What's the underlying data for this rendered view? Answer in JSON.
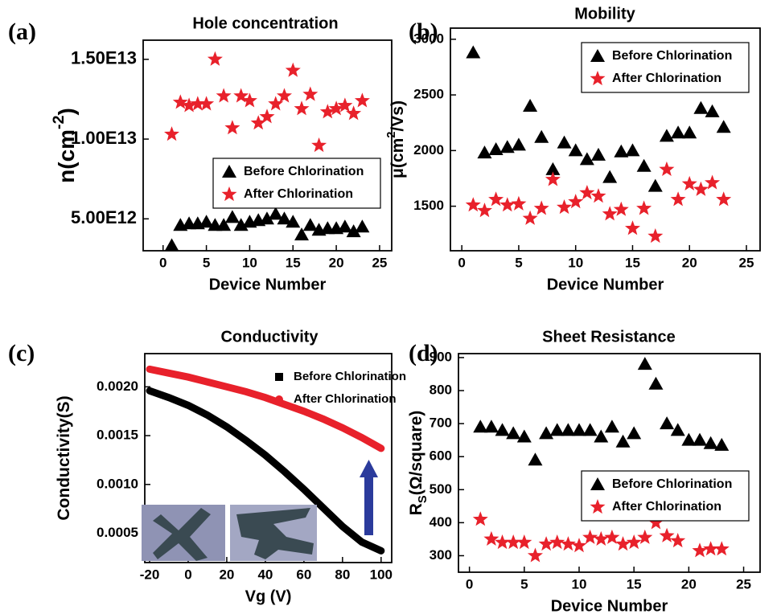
{
  "chart_data": [
    {
      "type": "scatter",
      "label": "(a)",
      "title": "Hole concentration",
      "x_label": "Device Number",
      "y_label": [
        "n(cm",
        "-2",
        ")"
      ],
      "y_label_style": "superscript",
      "x": [
        1,
        2,
        3,
        4,
        5,
        6,
        7,
        8,
        9,
        10,
        11,
        12,
        13,
        14,
        15,
        16,
        17,
        18,
        19,
        20,
        21,
        22,
        23
      ],
      "series": [
        {
          "name": "Before Chlorination",
          "color": "#000000",
          "marker": "triangle",
          "values": [
            3330000000000.0,
            4600000000000.0,
            4700000000000.0,
            4700000000000.0,
            4800000000000.0,
            4600000000000.0,
            4600000000000.0,
            5100000000000.0,
            4600000000000.0,
            4800000000000.0,
            4900000000000.0,
            5000000000000.0,
            5300000000000.0,
            5000000000000.0,
            4800000000000.0,
            4000000000000.0,
            4600000000000.0,
            4300000000000.0,
            4400000000000.0,
            4400000000000.0,
            4500000000000.0,
            4200000000000.0,
            4500000000000.0
          ]
        },
        {
          "name": "After Chlorination",
          "color": "#e8212b",
          "marker": "star",
          "values": [
            10300000000000.0,
            12300000000000.0,
            12100000000000.0,
            12200000000000.0,
            12200000000000.0,
            15000000000000.0,
            12700000000000.0,
            10700000000000.0,
            12700000000000.0,
            12400000000000.0,
            11000000000000.0,
            11400000000000.0,
            12200000000000.0,
            12700000000000.0,
            14300000000000.0,
            11900000000000.0,
            12800000000000.0,
            9600000000000.0,
            11700000000000.0,
            11900000000000.0,
            12100000000000.0,
            11600000000000.0,
            12400000000000.0
          ]
        }
      ],
      "xlim": [
        -2.3,
        26.4
      ],
      "ylim": [
        3000000000000.0,
        16200000000000.0
      ],
      "xticks": [
        0,
        5,
        10,
        15,
        20,
        25
      ],
      "yticks": [
        {
          "value": 5000000000000.0,
          "label": "5.00E12"
        },
        {
          "value": 10000000000000.0,
          "label": "1.00E13"
        },
        {
          "value": 15000000000000.0,
          "label": "1.50E13"
        }
      ],
      "legend": "center right",
      "legend_frame": true,
      "grid": false
    },
    {
      "type": "scatter",
      "label": "(b)",
      "title": "Mobility",
      "x_label": "Device Number",
      "y_label": [
        "μ(cm",
        "2",
        "/Vs)"
      ],
      "y_label_style": "superscript",
      "x": [
        1,
        2,
        3,
        4,
        5,
        6,
        7,
        8,
        9,
        10,
        11,
        12,
        13,
        14,
        15,
        16,
        17,
        18,
        19,
        20,
        21,
        22,
        23
      ],
      "series": [
        {
          "name": "Before Chlorination",
          "color": "#000000",
          "marker": "triangle",
          "values": [
            2880,
            1980,
            2010,
            2030,
            2050,
            2400,
            2120,
            1830,
            2070,
            2000,
            1920,
            1960,
            1760,
            1990,
            2000,
            1860,
            1680,
            2130,
            2160,
            2160,
            2380,
            2350,
            2210
          ]
        },
        {
          "name": "After Chlorination",
          "color": "#e8212b",
          "marker": "star",
          "values": [
            1510,
            1460,
            1560,
            1510,
            1520,
            1390,
            1480,
            1740,
            1490,
            1540,
            1620,
            1590,
            1430,
            1470,
            1300,
            1480,
            1230,
            1830,
            1560,
            1700,
            1650,
            1710,
            1560
          ]
        }
      ],
      "xlim": [
        -1,
        26.2
      ],
      "ylim": [
        1100,
        3100
      ],
      "xticks": [
        0,
        5,
        10,
        15,
        20,
        25
      ],
      "yticks": [
        1500,
        2000,
        2500,
        3000
      ],
      "legend": "upper right",
      "legend_frame": true,
      "grid": false
    },
    {
      "type": "line",
      "label": "(c)",
      "title": "Conductivity",
      "x_label": "Vg (V)",
      "y_label": [
        "Conductivity(S)"
      ],
      "y_label_style": "plain",
      "x": [
        -20,
        -10,
        0,
        10,
        20,
        30,
        40,
        50,
        60,
        70,
        80,
        90,
        100
      ],
      "series": [
        {
          "name": "Before Chlorination",
          "color": "#000000",
          "marker": "square",
          "values": [
            0.00196,
            0.00189,
            0.00181,
            0.00171,
            0.00159,
            0.00145,
            0.0013,
            0.00113,
            0.00095,
            0.00076,
            0.00057,
            0.00041,
            0.00032
          ]
        },
        {
          "name": "After Chlorination",
          "color": "#e8212b",
          "marker": "circle",
          "values": [
            0.00218,
            0.00214,
            0.0021,
            0.00205,
            0.002,
            0.00195,
            0.00189,
            0.00182,
            0.00175,
            0.00167,
            0.00158,
            0.00148,
            0.00137
          ]
        }
      ],
      "xlim": [
        -22.5,
        105.5
      ],
      "ylim": [
        0.0002,
        0.00234
      ],
      "xticks": [
        -20,
        0,
        20,
        40,
        60,
        80,
        100
      ],
      "yticks": [
        {
          "value": 0.0005,
          "label": "0.0005"
        },
        {
          "value": 0.001,
          "label": "0.0010"
        },
        {
          "value": 0.0015,
          "label": "0.0015"
        },
        {
          "value": 0.002,
          "label": "0.0020"
        }
      ],
      "legend": "upper right",
      "legend_frame": false,
      "grid": false
    },
    {
      "type": "scatter",
      "label": "(d)",
      "title": "Sheet Resistance",
      "x_label": "Device Number",
      "y_label": [
        "R",
        "S",
        "(Ω/square)"
      ],
      "y_label_style": "subscript",
      "x": [
        1,
        2,
        3,
        4,
        5,
        6,
        7,
        8,
        9,
        10,
        11,
        12,
        13,
        14,
        15,
        16,
        17,
        18,
        19,
        20,
        21,
        22,
        23
      ],
      "series": [
        {
          "name": "Before Chlorination",
          "color": "#000000",
          "marker": "triangle",
          "values": [
            690,
            690,
            680,
            670,
            660,
            590,
            670,
            680,
            680,
            680,
            680,
            660,
            690,
            645,
            670,
            880,
            820,
            700,
            680,
            650,
            650,
            640,
            635
          ]
        },
        {
          "name": "After Chlorination",
          "color": "#e8212b",
          "marker": "star",
          "values": [
            410,
            350,
            340,
            340,
            340,
            300,
            335,
            340,
            335,
            330,
            355,
            350,
            355,
            335,
            340,
            355,
            400,
            360,
            345,
            null,
            315,
            320,
            320
          ]
        }
      ],
      "xlim": [
        -1,
        26.5
      ],
      "ylim": [
        250,
        912
      ],
      "xticks": [
        0,
        5,
        10,
        15,
        20,
        25
      ],
      "yticks": [
        300,
        400,
        500,
        600,
        700,
        800,
        900
      ],
      "legend": "lower right",
      "legend_frame": true,
      "grid": false
    }
  ]
}
